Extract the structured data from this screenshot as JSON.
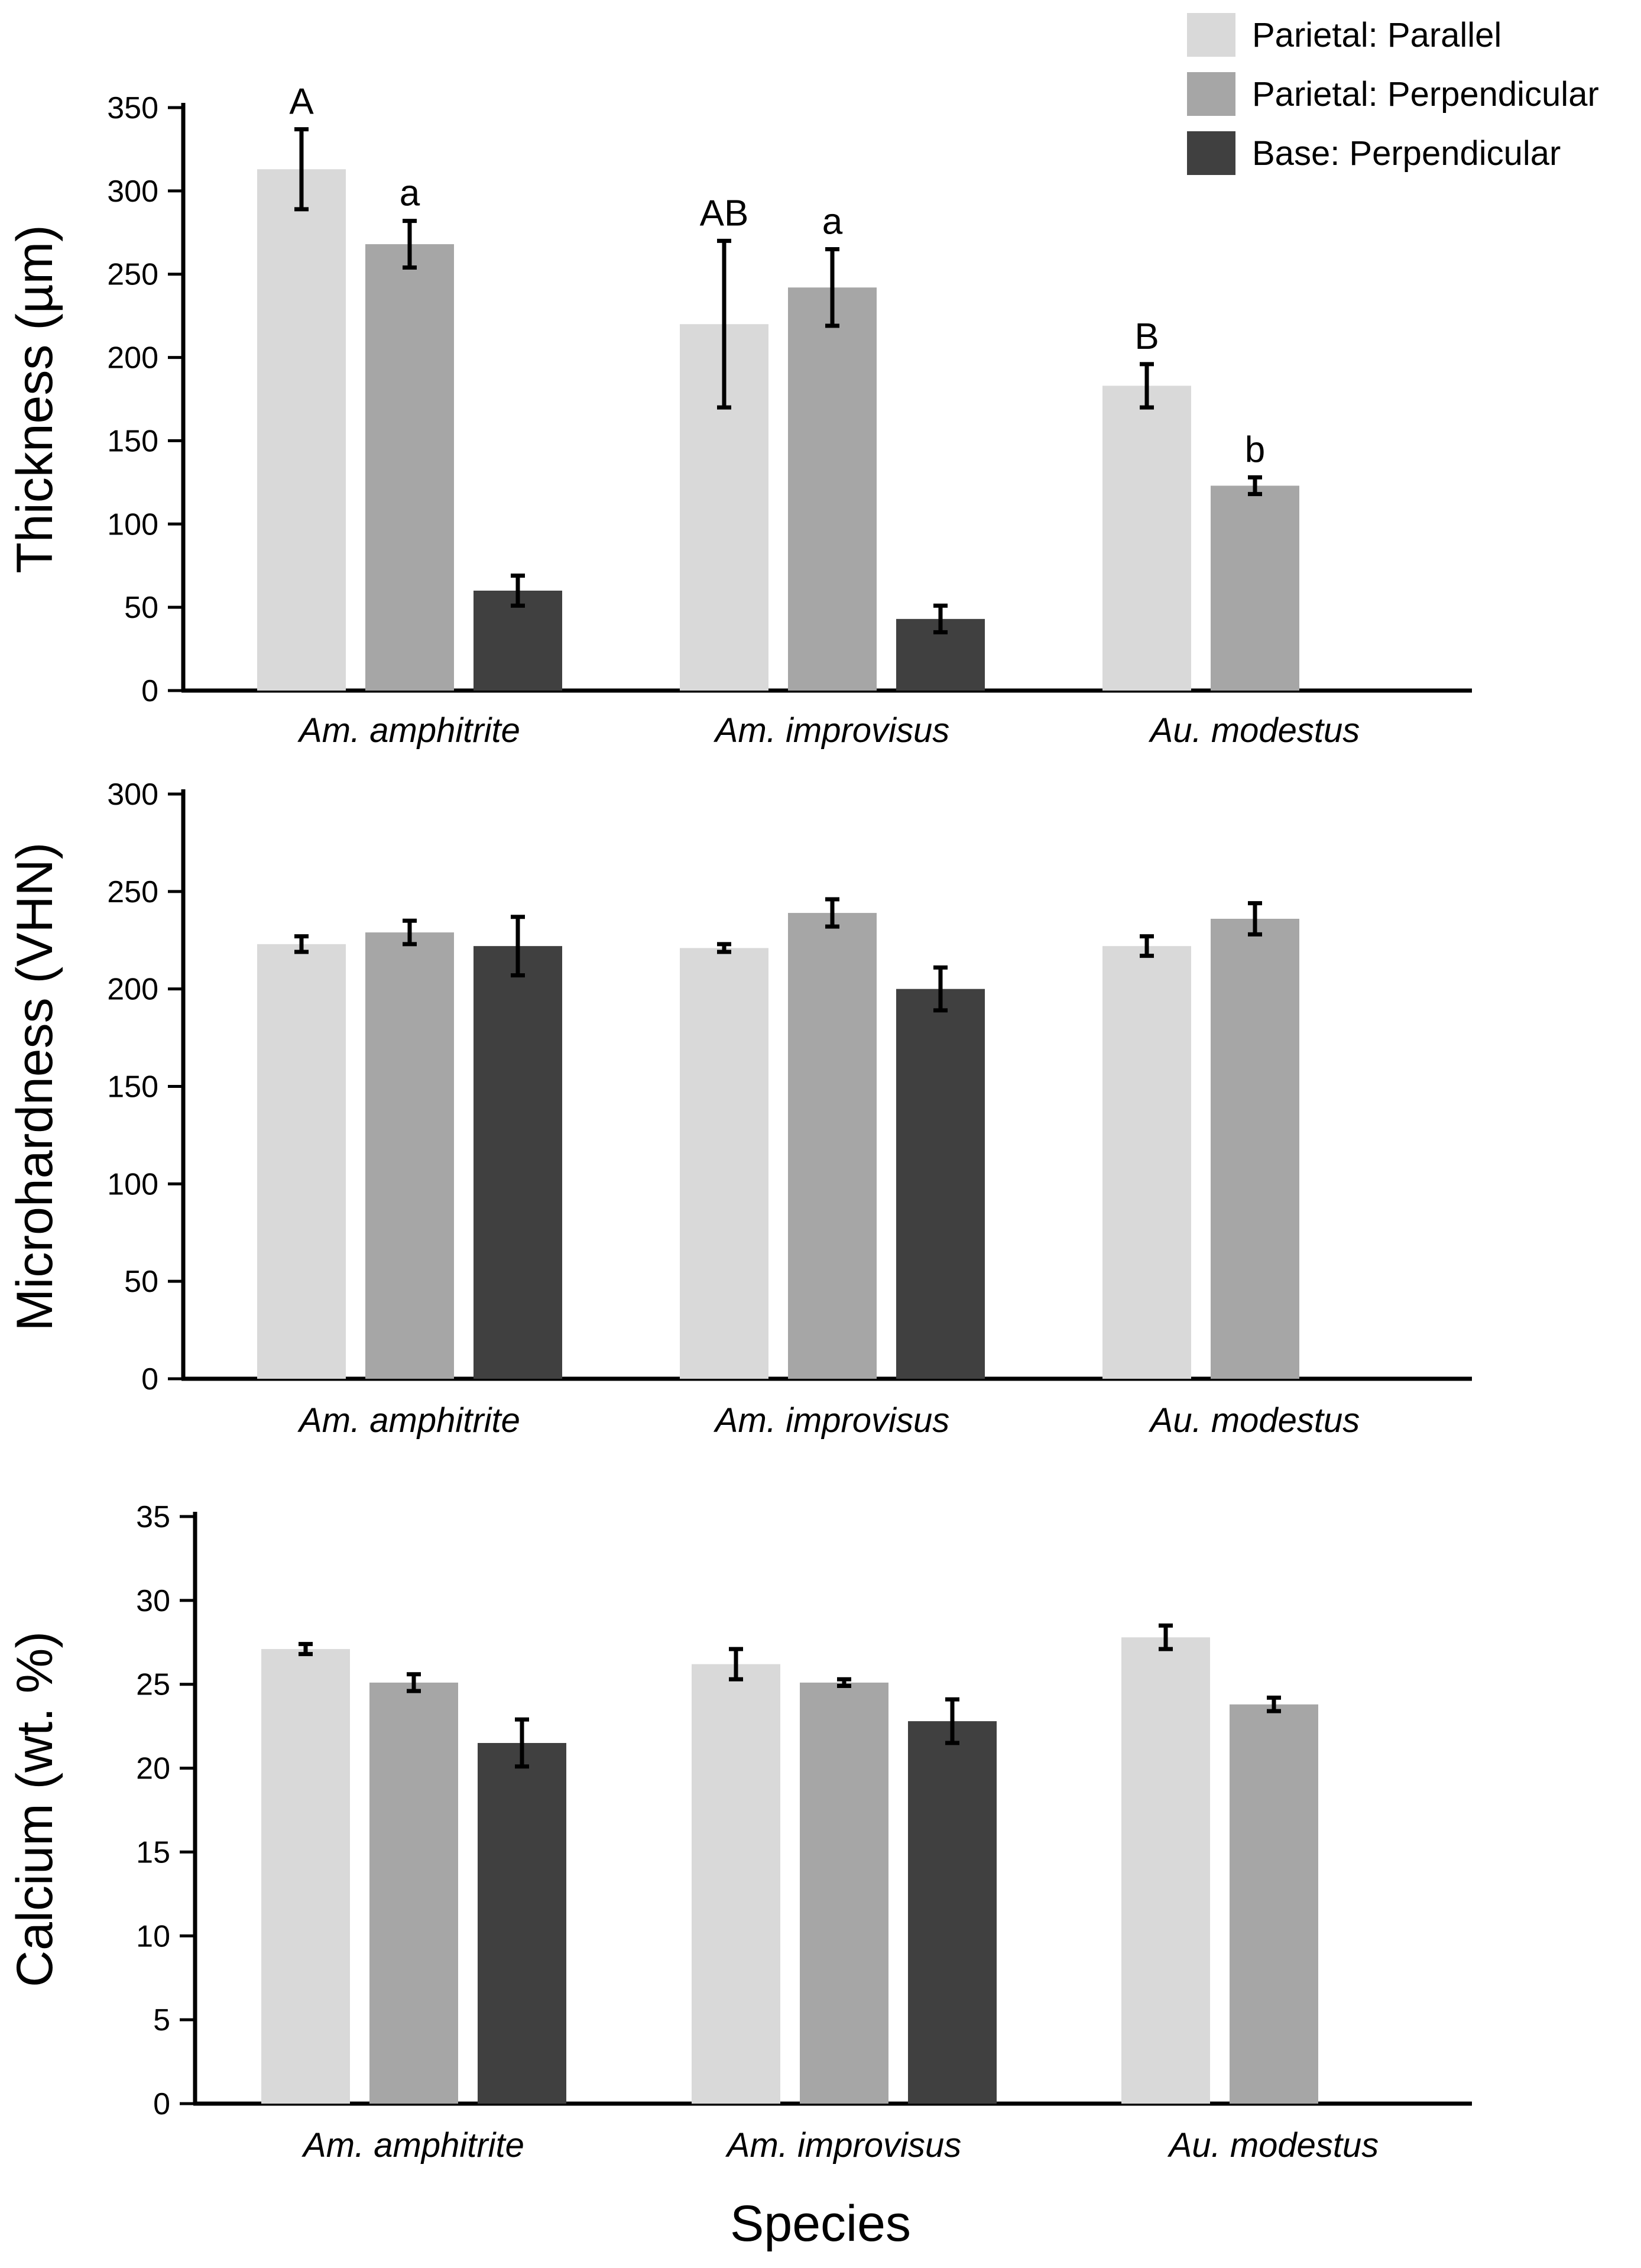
{
  "colors": {
    "Parietal: Parallel": "#d9d9d9",
    "Parietal: Perpendicular": "#a6a6a6",
    "Base: Perpendicular": "#404040",
    "axis": "#000000"
  },
  "legend": {
    "placement": "top-right",
    "entries": [
      "Parietal: Parallel",
      "Parietal: Perpendicular",
      "Base: Perpendicular"
    ]
  },
  "xlabel": "Species",
  "chart_data": [
    {
      "type": "bar",
      "ylabel": "Thickness (µm)",
      "ylim": [
        0,
        350
      ],
      "yticks": [
        0,
        50,
        100,
        150,
        200,
        250,
        300,
        350
      ],
      "categories": [
        "Am. amphitrite",
        "Am. improvisus",
        "Au. modestus"
      ],
      "series": [
        {
          "name": "Parietal: Parallel",
          "values": [
            313,
            220,
            183
          ],
          "errors": [
            24,
            50,
            13
          ],
          "labels": [
            "A",
            "AB",
            "B"
          ]
        },
        {
          "name": "Parietal: Perpendicular",
          "values": [
            268,
            242,
            123
          ],
          "errors": [
            14,
            23,
            5
          ],
          "labels": [
            "a",
            "a",
            "b"
          ]
        },
        {
          "name": "Base: Perpendicular",
          "values": [
            60,
            43,
            null
          ],
          "errors": [
            9,
            8,
            null
          ],
          "labels": [
            "",
            "",
            ""
          ]
        }
      ]
    },
    {
      "type": "bar",
      "ylabel": "Microhardness (VHN)",
      "ylim": [
        0,
        300
      ],
      "yticks": [
        0,
        50,
        100,
        150,
        200,
        250,
        300
      ],
      "categories": [
        "Am. amphitrite",
        "Am. improvisus",
        "Au. modestus"
      ],
      "series": [
        {
          "name": "Parietal: Parallel",
          "values": [
            223,
            221,
            222
          ],
          "errors": [
            4,
            2,
            5
          ]
        },
        {
          "name": "Parietal: Perpendicular",
          "values": [
            229,
            239,
            236
          ],
          "errors": [
            6,
            7,
            8
          ]
        },
        {
          "name": "Base: Perpendicular",
          "values": [
            222,
            200,
            null
          ],
          "errors": [
            15,
            11,
            null
          ]
        }
      ]
    },
    {
      "type": "bar",
      "ylabel": "Calcium (wt. %)",
      "ylim": [
        0,
        35
      ],
      "yticks": [
        0,
        5,
        10,
        15,
        20,
        25,
        30,
        35
      ],
      "categories": [
        "Am. amphitrite",
        "Am. improvisus",
        "Au. modestus"
      ],
      "series": [
        {
          "name": "Parietal: Parallel",
          "values": [
            27.1,
            26.2,
            27.8
          ],
          "errors": [
            0.3,
            0.9,
            0.7
          ]
        },
        {
          "name": "Parietal: Perpendicular",
          "values": [
            25.1,
            25.1,
            23.8
          ],
          "errors": [
            0.5,
            0.2,
            0.4
          ]
        },
        {
          "name": "Base: Perpendicular",
          "values": [
            21.5,
            22.8,
            null
          ],
          "errors": [
            1.4,
            1.3,
            null
          ]
        }
      ]
    }
  ]
}
